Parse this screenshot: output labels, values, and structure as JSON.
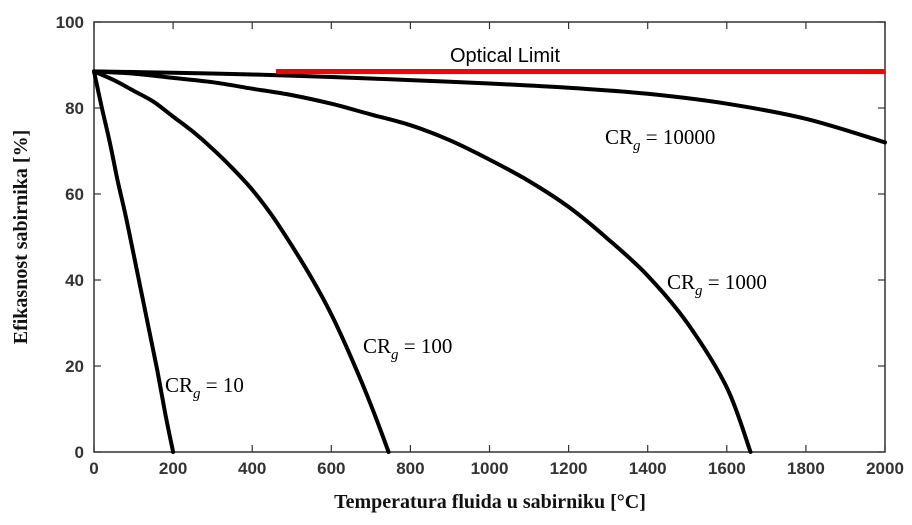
{
  "chart_data": {
    "type": "line",
    "title": "",
    "xlabel": "Temperatura fluida u sabirniku [°C]",
    "ylabel": "Efikasnost sabirnika [%]",
    "xlim": [
      0,
      2000
    ],
    "ylim": [
      0,
      100
    ],
    "xticks": [
      0,
      200,
      400,
      600,
      800,
      1000,
      1200,
      1400,
      1600,
      1800,
      2000
    ],
    "yticks": [
      0,
      20,
      40,
      60,
      80,
      100
    ],
    "grid": false,
    "colors": {
      "curve": "#000000",
      "optical_limit": "#ff0000",
      "axis": "#333333"
    },
    "optical_limit": {
      "label": "Optical Limit",
      "x": [
        460,
        2000
      ],
      "y": [
        88.5,
        88.5
      ]
    },
    "series": [
      {
        "label_prefix": "CR",
        "label_sub": "g",
        "label_suffix": " = 10",
        "x": [
          0,
          20,
          40,
          60,
          80,
          100,
          120,
          140,
          160,
          180,
          200
        ],
        "y": [
          88.5,
          80,
          72,
          63,
          55,
          46,
          37,
          28,
          19,
          9,
          0
        ]
      },
      {
        "label_prefix": "CR",
        "label_sub": "g",
        "label_suffix": " = 100",
        "x": [
          0,
          50,
          100,
          150,
          200,
          250,
          300,
          350,
          400,
          450,
          500,
          550,
          600,
          650,
          700,
          745
        ],
        "y": [
          88.5,
          86.5,
          84,
          81.5,
          78,
          74.5,
          70.5,
          66,
          61,
          55,
          48,
          40.5,
          32,
          22,
          11,
          0
        ]
      },
      {
        "label_prefix": "CR",
        "label_sub": "g",
        "label_suffix": " = 1000",
        "x": [
          0,
          100,
          200,
          300,
          400,
          500,
          600,
          700,
          800,
          900,
          1000,
          1100,
          1200,
          1300,
          1400,
          1500,
          1600,
          1660
        ],
        "y": [
          88.5,
          88,
          87,
          86,
          84.5,
          83,
          81,
          78.5,
          76,
          72.5,
          68,
          63,
          57,
          49.5,
          41,
          30,
          15,
          0
        ]
      },
      {
        "label_prefix": "CR",
        "label_sub": "g",
        "label_suffix": " = 10000",
        "x": [
          0,
          200,
          400,
          600,
          800,
          1000,
          1200,
          1400,
          1600,
          1800,
          2000
        ],
        "y": [
          88.5,
          88.2,
          87.8,
          87.2,
          86.5,
          85.7,
          84.7,
          83.3,
          81.0,
          77.5,
          72
        ]
      }
    ]
  }
}
